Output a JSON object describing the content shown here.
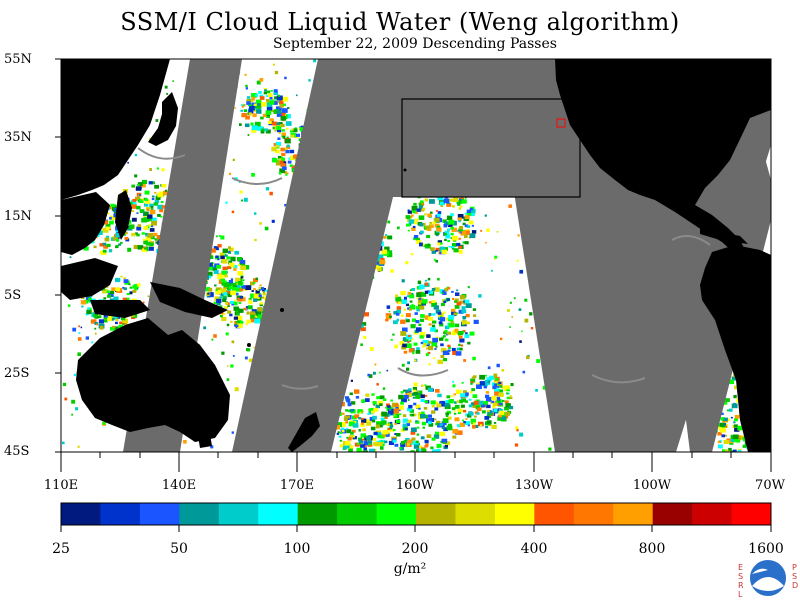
{
  "title": "SSM/I Cloud Liquid Water (Weng algorithm)",
  "subtitle": "September 22, 2009  Descending Passes",
  "latitude_labels": [
    "55N",
    "35N",
    "15N",
    "5S",
    "25S",
    "45S"
  ],
  "longitude_labels": [
    "110E",
    "140E",
    "170E",
    "160W",
    "130W",
    "100W",
    "70W"
  ],
  "colorbar": {
    "ticks": [
      "25",
      "50",
      "100",
      "200",
      "400",
      "800",
      "1600"
    ],
    "unit": "g/m²",
    "colors": [
      "#001a80",
      "#0033cc",
      "#1a55ff",
      "#009999",
      "#00cccc",
      "#00ffff",
      "#009900",
      "#00cc00",
      "#00ff00",
      "#b3b300",
      "#dddd00",
      "#ffff00",
      "#ff5500",
      "#ff7700",
      "#ffa000",
      "#990000",
      "#cc0000",
      "#ff0000"
    ]
  },
  "colors": {
    "land": "#000000",
    "no_data_gap": "#6b6b6b",
    "clear_ocean": "#ffffff",
    "region_box": "#000000",
    "marker": "#ff0000"
  },
  "logo": {
    "left_text": "ESRL",
    "right_text": "PSD",
    "center_text": "NOAA"
  }
}
